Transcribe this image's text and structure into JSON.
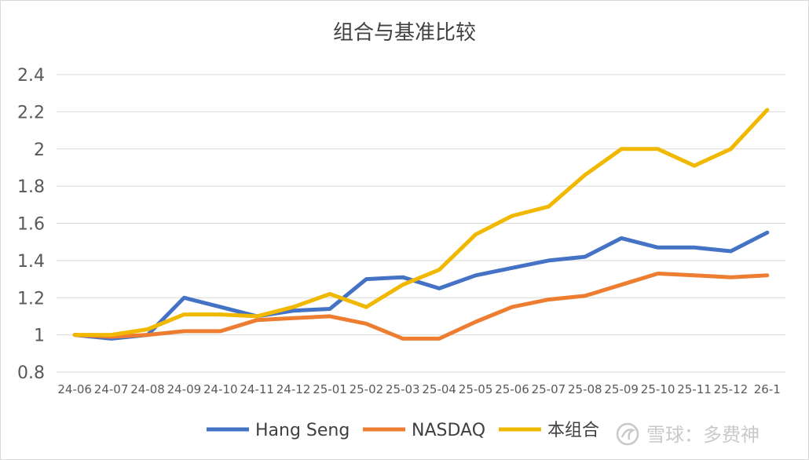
{
  "chart_data": {
    "type": "line",
    "title": "组合与基准比较",
    "xlabel": "",
    "ylabel": "",
    "ylim": [
      0.8,
      2.4
    ],
    "yticks": [
      "0.8",
      "1",
      "1.2",
      "1.4",
      "1.6",
      "1.8",
      "2",
      "2.2",
      "2.4"
    ],
    "grid": true,
    "legend_position": "bottom",
    "categories": [
      "24-06",
      "24-07",
      "24-08",
      "24-09",
      "24-10",
      "24-11",
      "24-12",
      "25-01",
      "25-02",
      "25-03",
      "25-04",
      "25-05",
      "25-06",
      "25-07",
      "25-08",
      "25-09",
      "25-10",
      "25-11",
      "25-12",
      "26-1"
    ],
    "series": [
      {
        "name": "Hang Seng",
        "color": "#4472C4",
        "values": [
          1.0,
          0.98,
          1.0,
          1.2,
          1.15,
          1.1,
          1.13,
          1.14,
          1.3,
          1.31,
          1.25,
          1.32,
          1.36,
          1.4,
          1.42,
          1.52,
          1.47,
          1.47,
          1.45,
          1.55
        ]
      },
      {
        "name": "NASDAQ",
        "color": "#ED7D31",
        "values": [
          1.0,
          0.99,
          1.0,
          1.02,
          1.02,
          1.08,
          1.09,
          1.1,
          1.06,
          0.98,
          0.98,
          1.07,
          1.15,
          1.19,
          1.21,
          1.27,
          1.33,
          1.32,
          1.31,
          1.32
        ]
      },
      {
        "name": "本组合",
        "color": "#F1B800",
        "values": [
          1.0,
          1.0,
          1.03,
          1.11,
          1.11,
          1.1,
          1.15,
          1.22,
          1.15,
          1.27,
          1.35,
          1.54,
          1.64,
          1.69,
          1.86,
          2.0,
          2.0,
          1.91,
          2.0,
          2.21
        ]
      }
    ]
  },
  "watermark": {
    "text": "雪球：多费神",
    "icon": "snowball-logo-icon"
  }
}
